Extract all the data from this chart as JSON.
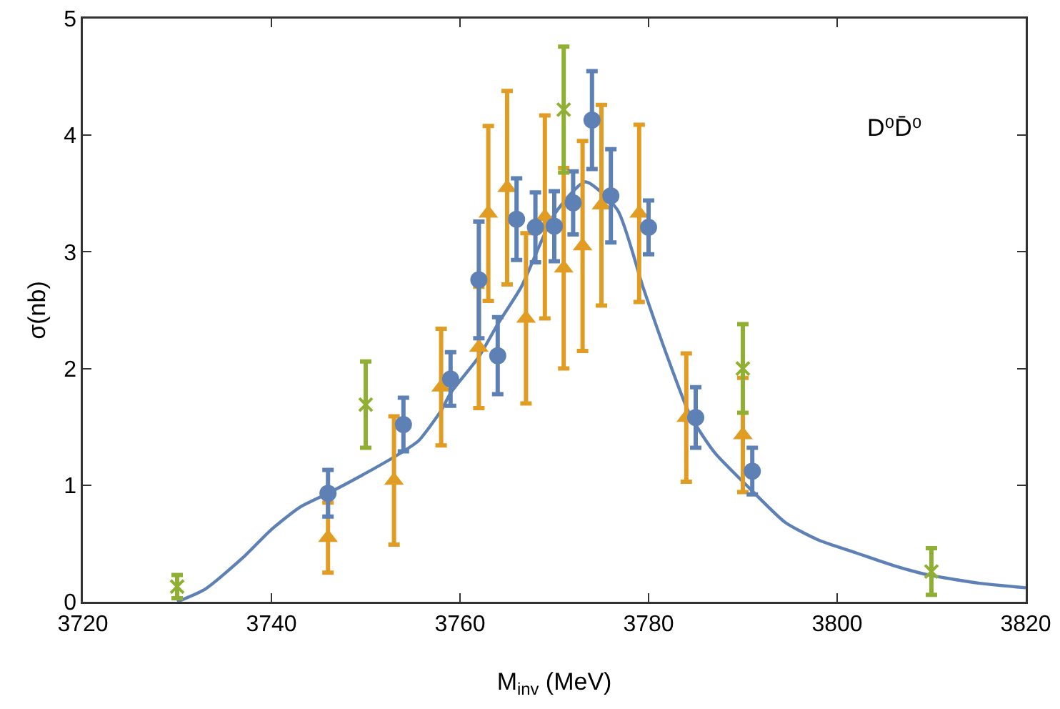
{
  "chart_data": {
    "type": "scatter",
    "xlabel": "M$_{inv}$ (MeV)",
    "ylabel": "σ(nb)",
    "annotations": [
      "D⁰D̄⁰"
    ],
    "xlim": [
      3720,
      3820
    ],
    "xticks": [
      3720,
      3740,
      3760,
      3780,
      3800,
      3820
    ],
    "ylim": [
      0,
      5
    ],
    "yticks": [
      0,
      1,
      2,
      3,
      4,
      5
    ],
    "series": [
      {
        "type": "line",
        "color": "#5e81b5",
        "line_style": "solid",
        "marker": "none",
        "x": [
          3730,
          3733,
          3737,
          3740,
          3743,
          3746,
          3749.5,
          3753.6,
          3755.6,
          3758,
          3759,
          3762,
          3764,
          3766.5,
          3770,
          3773.3,
          3776.7,
          3779.4,
          3782,
          3784.4,
          3787,
          3791,
          3794.5,
          3798,
          3802,
          3806,
          3809.7,
          3815,
          3820
        ],
        "values": [
          0,
          0.11,
          0.38,
          0.62,
          0.81,
          0.93,
          1.08,
          1.27,
          1.38,
          1.64,
          1.79,
          2.1,
          2.38,
          2.7,
          3.32,
          3.6,
          3.36,
          2.7,
          2.1,
          1.6,
          1.28,
          0.95,
          0.68,
          0.53,
          0.42,
          0.31,
          0.23,
          0.16,
          0.12
        ]
      },
      {
        "type": "scatter",
        "color": "#e19c24",
        "marker": "triangle",
        "x": [
          3746,
          3753,
          3758,
          3762,
          3763,
          3765,
          3767,
          3769,
          3771,
          3773,
          3775,
          3779,
          3784,
          3790
        ],
        "values": [
          0.55,
          1.04,
          1.84,
          2.18,
          3.33,
          3.55,
          2.43,
          3.3,
          2.86,
          3.05,
          3.4,
          3.33,
          1.58,
          1.43
        ],
        "errors": [
          0.3,
          0.55,
          0.5,
          0.52,
          0.75,
          0.83,
          0.73,
          0.87,
          0.86,
          0.9,
          0.86,
          0.76,
          0.55,
          0.49
        ]
      },
      {
        "type": "scatter",
        "color": "#5e81b5",
        "marker": "circle",
        "x": [
          3746,
          3754,
          3759,
          3762,
          3764,
          3766,
          3768,
          3770,
          3772,
          3774,
          3776,
          3780,
          3785,
          3791
        ],
        "values": [
          0.93,
          1.52,
          1.91,
          2.76,
          2.11,
          3.28,
          3.21,
          3.22,
          3.42,
          4.13,
          3.48,
          3.21,
          1.58,
          1.12
        ],
        "errors": [
          0.2,
          0.23,
          0.23,
          0.5,
          0.33,
          0.35,
          0.3,
          0.3,
          0.27,
          0.42,
          0.4,
          0.23,
          0.26,
          0.2
        ]
      },
      {
        "type": "scatter",
        "color": "#8fb032",
        "marker": "cross",
        "x": [
          3730,
          3750,
          3771,
          3790,
          3810
        ],
        "values": [
          0.13,
          1.69,
          4.22,
          2.0,
          0.26
        ],
        "errors": [
          0.1,
          0.37,
          0.54,
          0.38,
          0.2
        ]
      }
    ]
  }
}
